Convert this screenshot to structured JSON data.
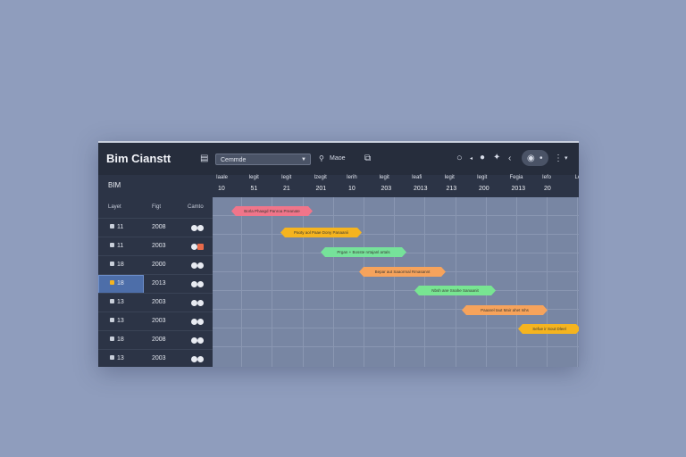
{
  "app": {
    "title": "Bim Cianstt"
  },
  "toolbar": {
    "dropdown_value": "Cemmde",
    "search_label": "Maoe",
    "icons": [
      "menu-icon",
      "search-icon",
      "document-icon",
      "zoom-icon",
      "play-icon",
      "apple-icon",
      "sparkle-icon",
      "chevron-left-icon",
      "circle-icon",
      "dot-icon",
      "chevron-down-icon"
    ]
  },
  "left_panel": {
    "header": "BIM",
    "columns": [
      "Layet",
      "Figt",
      "Camto"
    ],
    "rows": [
      {
        "name": "11",
        "year": "2008",
        "toggle": "normal",
        "selected": false
      },
      {
        "name": "11",
        "year": "2003",
        "toggle": "warn",
        "selected": false
      },
      {
        "name": "18",
        "year": "2000",
        "toggle": "normal",
        "selected": false
      },
      {
        "name": "18",
        "year": "2013",
        "toggle": "normal",
        "selected": true
      },
      {
        "name": "13",
        "year": "2003",
        "toggle": "normal",
        "selected": false
      },
      {
        "name": "13",
        "year": "2003",
        "toggle": "normal",
        "selected": false
      },
      {
        "name": "18",
        "year": "2008",
        "toggle": "normal",
        "selected": false
      },
      {
        "name": "13",
        "year": "2003",
        "toggle": "normal",
        "selected": false
      }
    ]
  },
  "timeline": {
    "columns": [
      {
        "label": "Iaale",
        "num": "10"
      },
      {
        "label": "Iegit",
        "num": "51"
      },
      {
        "label": "Iegit",
        "num": "21"
      },
      {
        "label": "Izegit",
        "num": "201"
      },
      {
        "label": "Ierih",
        "num": "10"
      },
      {
        "label": "Iegit",
        "num": "203"
      },
      {
        "label": "Ieafi",
        "num": "2013"
      },
      {
        "label": "Iegit",
        "num": "213"
      },
      {
        "label": "Iegit",
        "num": "200"
      },
      {
        "label": "Fegia",
        "num": "2013"
      },
      {
        "label": "Iefo",
        "num": "20"
      },
      {
        "label": "Leat",
        "num": ""
      }
    ],
    "tasks": [
      {
        "label": "Borla Phaagd Panroa Preanate",
        "color": "#f0758a"
      },
      {
        "label": "Paoty aol Paae Dony Panaanii",
        "color": "#f5b41f"
      },
      {
        "label": "Prgan + Bosste nrtajanl artals",
        "color": "#76e29a"
      },
      {
        "label": "Bepar aut Saaormal Rmasannt",
        "color": "#f6a35c"
      },
      {
        "label": "Nbsh ane Snahe Sanaanit",
        "color": "#78e592"
      },
      {
        "label": "Paaarel taut Mair ahet Ishs",
        "color": "#f6a35c"
      },
      {
        "label": "Sefue ir Sout Dleel",
        "color": "#f5b41f"
      }
    ]
  }
}
